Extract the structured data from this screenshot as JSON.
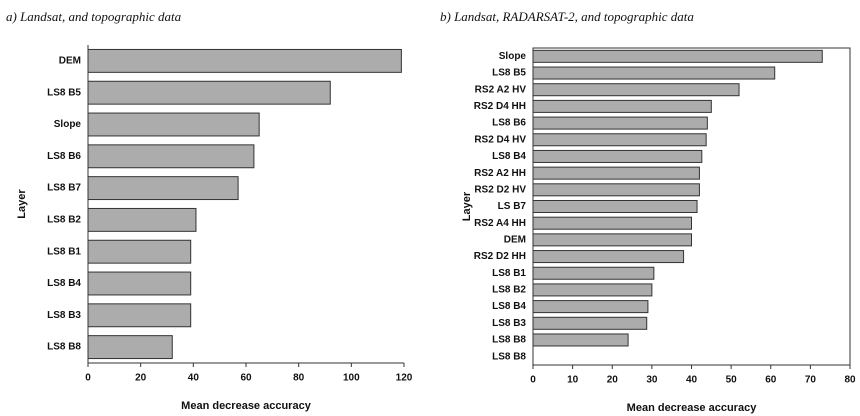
{
  "chart_data": [
    {
      "type": "bar",
      "orientation": "horizontal",
      "title": "a) Landsat, and topographic data",
      "x_label": "Mean decrease accuracy",
      "y_label": "Layer",
      "categories": [
        "DEM",
        "LS8 B5",
        "Slope",
        "LS8 B6",
        "LS8 B7",
        "LS8 B2",
        "LS8 B1",
        "LS8 B4",
        "LS8 B3",
        "LS8 B8"
      ],
      "values": [
        119,
        92,
        65,
        63,
        57,
        41,
        39,
        39,
        39,
        32
      ],
      "color": "#acacac",
      "xlim": [
        0,
        120
      ],
      "xticks": [
        0,
        20,
        40,
        60,
        80,
        100,
        120
      ]
    },
    {
      "type": "bar",
      "orientation": "horizontal",
      "title": "b) Landsat, RADARSAT-2, and topographic data",
      "x_label": "Mean decrease accuracy",
      "y_label": "Layer",
      "categories": [
        "Slope",
        "LS8 B5",
        "RS2 A2 HV",
        "RS2 D4 HH",
        "LS8 B6",
        "RS2 D4 HV",
        "LS8 B4",
        "RS2 A2 HH",
        "RS2 D2 HV",
        "LS B7",
        "RS2 A4 HH",
        "DEM",
        "RS2 D2 HH",
        "LS8 B1",
        "LS8 B2",
        "LS8 B4",
        "LS8 B3",
        "LS8 B8",
        "LS8 B8"
      ],
      "values": [
        73,
        61,
        52,
        45,
        44,
        43.7,
        42.6,
        42,
        42,
        41.4,
        40,
        40,
        38,
        30.5,
        30,
        29,
        28.7,
        24,
        null
      ],
      "color": "#acacac",
      "xlim": [
        0,
        80
      ],
      "xticks": [
        0,
        10,
        20,
        30,
        40,
        50,
        60,
        70,
        80
      ]
    }
  ]
}
